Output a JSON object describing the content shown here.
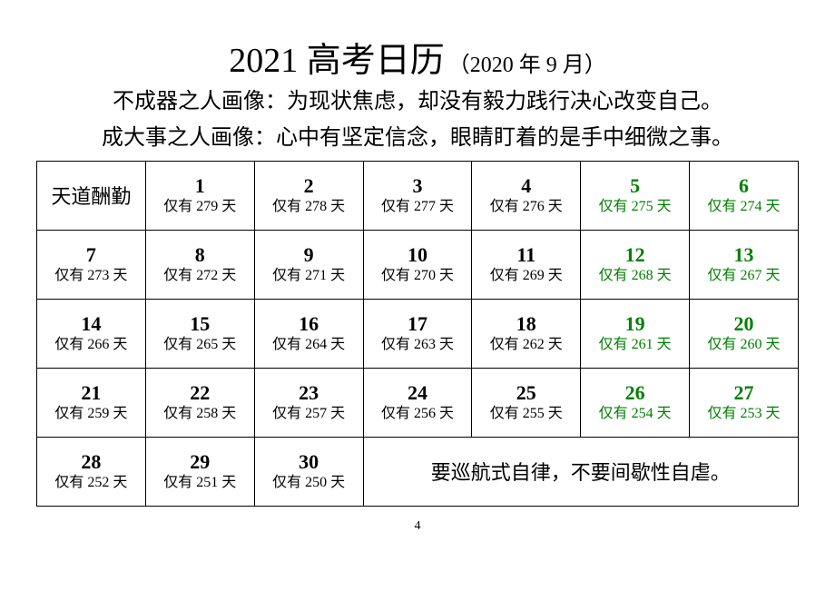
{
  "title": {
    "main": "2021 高考日历",
    "sub": "（2020 年 9 月）"
  },
  "subtitle1": "不成器之人画像：为现状焦虑，却没有毅力践行决心改变自己。",
  "subtitle2": "成大事之人画像：心中有坚定信念，眼睛盯着的是手中细微之事。",
  "header_cell": "天道酬勤",
  "footer_msg": "要巡航式自律，不要间歇性自虐。",
  "page_number": "4",
  "colors": {
    "weekday": "#000000",
    "weekend": "#008000",
    "background": "#ffffff",
    "border": "#000000"
  },
  "days": [
    {
      "num": "1",
      "remain": "仅有 279 天",
      "weekend": false
    },
    {
      "num": "2",
      "remain": "仅有 278 天",
      "weekend": false
    },
    {
      "num": "3",
      "remain": "仅有 277 天",
      "weekend": false
    },
    {
      "num": "4",
      "remain": "仅有 276 天",
      "weekend": false
    },
    {
      "num": "5",
      "remain": "仅有 275 天",
      "weekend": true
    },
    {
      "num": "6",
      "remain": "仅有 274 天",
      "weekend": true
    },
    {
      "num": "7",
      "remain": "仅有 273 天",
      "weekend": false
    },
    {
      "num": "8",
      "remain": "仅有 272 天",
      "weekend": false
    },
    {
      "num": "9",
      "remain": "仅有 271 天",
      "weekend": false
    },
    {
      "num": "10",
      "remain": "仅有 270 天",
      "weekend": false
    },
    {
      "num": "11",
      "remain": "仅有 269 天",
      "weekend": false
    },
    {
      "num": "12",
      "remain": "仅有 268 天",
      "weekend": true
    },
    {
      "num": "13",
      "remain": "仅有 267 天",
      "weekend": true
    },
    {
      "num": "14",
      "remain": "仅有 266 天",
      "weekend": false
    },
    {
      "num": "15",
      "remain": "仅有 265 天",
      "weekend": false
    },
    {
      "num": "16",
      "remain": "仅有 264 天",
      "weekend": false
    },
    {
      "num": "17",
      "remain": "仅有 263 天",
      "weekend": false
    },
    {
      "num": "18",
      "remain": "仅有 262 天",
      "weekend": false
    },
    {
      "num": "19",
      "remain": "仅有 261 天",
      "weekend": true
    },
    {
      "num": "20",
      "remain": "仅有 260 天",
      "weekend": true
    },
    {
      "num": "21",
      "remain": "仅有 259 天",
      "weekend": false
    },
    {
      "num": "22",
      "remain": "仅有 258 天",
      "weekend": false
    },
    {
      "num": "23",
      "remain": "仅有 257 天",
      "weekend": false
    },
    {
      "num": "24",
      "remain": "仅有 256 天",
      "weekend": false
    },
    {
      "num": "25",
      "remain": "仅有 255 天",
      "weekend": false
    },
    {
      "num": "26",
      "remain": "仅有 254 天",
      "weekend": true
    },
    {
      "num": "27",
      "remain": "仅有 253 天",
      "weekend": true
    },
    {
      "num": "28",
      "remain": "仅有 252 天",
      "weekend": false
    },
    {
      "num": "29",
      "remain": "仅有 251 天",
      "weekend": false
    },
    {
      "num": "30",
      "remain": "仅有 250 天",
      "weekend": false
    }
  ]
}
